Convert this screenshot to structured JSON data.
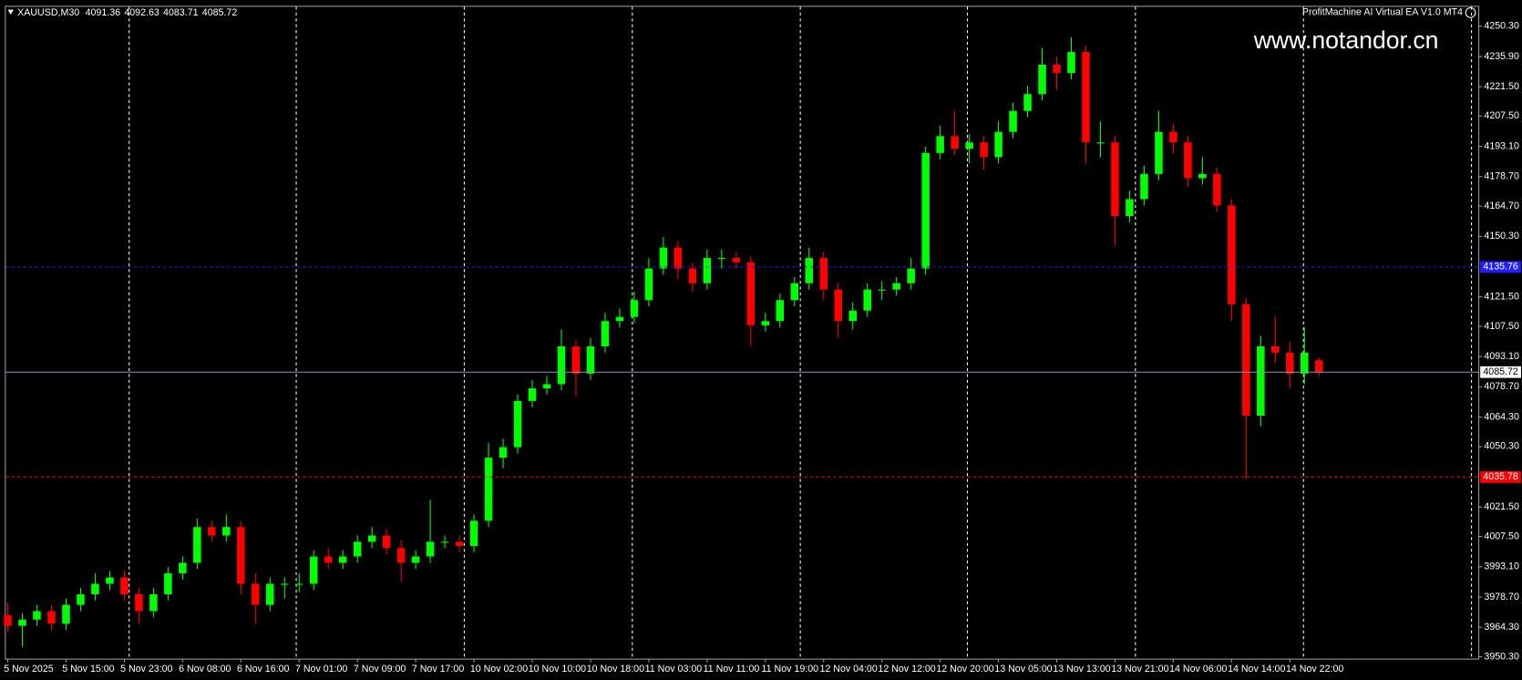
{
  "chart_data": {
    "type": "candlestick",
    "title": "XAUUSD,M30",
    "subtitle": "ProfitMachine AI Virtual EA V1.0 MT4",
    "annotation": "www.notandor.cn",
    "categories": [
      "5 Nov 2025",
      null,
      null,
      null,
      "5 Nov 15:00",
      null,
      null,
      null,
      "5 Nov 23:00",
      null,
      null,
      null,
      "6 Nov 08:00",
      null,
      null,
      null,
      "6 Nov 16:00",
      null,
      null,
      null,
      "7 Nov 01:00",
      null,
      null,
      null,
      "7 Nov 09:00",
      null,
      null,
      null,
      "7 Nov 17:00",
      null,
      null,
      null,
      "10 Nov 02:00",
      null,
      null,
      null,
      "10 Nov 10:00",
      null,
      null,
      null,
      "10 Nov 18:00",
      null,
      null,
      null,
      "11 Nov 03:00",
      null,
      null,
      null,
      "11 Nov 11:00",
      null,
      null,
      null,
      "11 Nov 19:00",
      null,
      null,
      null,
      "12 Nov 04:00",
      null,
      null,
      null,
      "12 Nov 12:00",
      null,
      null,
      null,
      "12 Nov 20:00",
      null,
      null,
      null,
      "13 Nov 05:00",
      null,
      null,
      null,
      "13 Nov 13:00",
      null,
      null,
      null,
      "13 Nov 21:00",
      null,
      null,
      null,
      "14 Nov 06:00",
      null,
      null,
      null,
      "14 Nov 14:00",
      null,
      null,
      null,
      "14 Nov 22:00",
      null,
      null
    ],
    "series": [
      {
        "up_color": "#00ff00",
        "down_color": "#ff0000",
        "open": [
          3970,
          3965,
          3968,
          3972,
          3966,
          3975,
          3980,
          3985,
          3988,
          3980,
          3972,
          3980,
          3990,
          3995,
          4012,
          4008,
          4012,
          3985,
          3975,
          3985,
          3985,
          3985,
          3998,
          3995,
          3998,
          4005,
          4008,
          4002,
          3995,
          3998,
          4005,
          4005,
          4003,
          4015,
          4045,
          4050,
          4072,
          4078,
          4080,
          4098,
          4085,
          4098,
          4110,
          4112,
          4120,
          4135,
          4145,
          4135,
          4128,
          4140,
          4140,
          4138,
          4108,
          4110,
          4120,
          4128,
          4140,
          4125,
          4110,
          4115,
          4125,
          4125,
          4128,
          4135,
          4190,
          4198,
          4192,
          4195,
          4188,
          4200,
          4210,
          4218,
          4232,
          4228,
          4238,
          4195,
          4195,
          4160,
          4168,
          4180,
          4200,
          4195,
          4178,
          4180,
          4165,
          4118,
          4065,
          4098,
          4095,
          4085,
          4091.36
        ],
        "high": [
          3976,
          3971,
          3975,
          3975,
          3978,
          3983,
          3990,
          3991,
          3991,
          3983,
          3983,
          3993,
          3998,
          4016,
          4015,
          4018,
          4015,
          3990,
          3988,
          3988,
          3990,
          4001,
          4002,
          4001,
          4008,
          4012,
          4011,
          4006,
          4001,
          4025,
          4008,
          4008,
          4018,
          4052,
          4054,
          4075,
          4082,
          4084,
          4106,
          4101,
          4102,
          4114,
          4116,
          4124,
          4140,
          4150,
          4148,
          4138,
          4144,
          4144,
          4143,
          4141,
          4114,
          4123,
          4131,
          4145,
          4143,
          4128,
          4119,
          4128,
          4129,
          4131,
          4140,
          4193,
          4203,
          4210,
          4199,
          4198,
          4205,
          4214,
          4222,
          4240,
          4236,
          4245,
          4241,
          4205,
          4198,
          4172,
          4184,
          4210,
          4204,
          4198,
          4188,
          4183,
          4168,
          4121,
          4103,
          4112,
          4100,
          4107,
          4092.63
        ],
        "low": [
          3962,
          3955,
          3965,
          3963,
          3963,
          3972,
          3977,
          3982,
          3977,
          3966,
          3969,
          3977,
          3987,
          3992,
          4005,
          4005,
          3980,
          3966,
          3972,
          3978,
          3981,
          3982,
          3992,
          3992,
          3995,
          4002,
          3999,
          3986,
          3992,
          3995,
          4002,
          4000,
          4000,
          4012,
          4040,
          4047,
          4069,
          4075,
          4077,
          4074,
          4082,
          4095,
          4107,
          4109,
          4117,
          4132,
          4130,
          4124,
          4125,
          4135,
          4135,
          4098,
          4105,
          4107,
          4117,
          4125,
          4120,
          4102,
          4106,
          4112,
          4120,
          4122,
          4125,
          4132,
          4187,
          4189,
          4185,
          4182,
          4185,
          4197,
          4207,
          4215,
          4220,
          4225,
          4185,
          4188,
          4146,
          4157,
          4165,
          4177,
          4190,
          4174,
          4175,
          4162,
          4110,
          4035,
          4060,
          4090,
          4078,
          4080,
          4083.71
        ],
        "close": [
          3965,
          3968,
          3972,
          3966,
          3975,
          3980,
          3985,
          3988,
          3980,
          3972,
          3980,
          3990,
          3995,
          4012,
          4008,
          4012,
          3985,
          3975,
          3985,
          3985,
          3985,
          3998,
          3995,
          3998,
          4005,
          4008,
          4002,
          3995,
          3998,
          4005,
          4005,
          4003,
          4015,
          4045,
          4050,
          4072,
          4078,
          4080,
          4098,
          4085,
          4098,
          4110,
          4112,
          4120,
          4135,
          4145,
          4135,
          4128,
          4140,
          4140,
          4138,
          4108,
          4110,
          4120,
          4128,
          4140,
          4125,
          4110,
          4115,
          4125,
          4125,
          4128,
          4135,
          4190,
          4198,
          4192,
          4195,
          4188,
          4200,
          4210,
          4218,
          4232,
          4228,
          4238,
          4195,
          4195,
          4160,
          4168,
          4180,
          4200,
          4195,
          4178,
          4180,
          4165,
          4118,
          4065,
          4098,
          4095,
          4085,
          4095,
          4085.72
        ]
      }
    ],
    "lines": [
      {
        "value": 4135.76,
        "color": "#2020ff",
        "style": "dashed"
      },
      {
        "value": 4085.72,
        "color": "#8c96b4",
        "style": "solid"
      },
      {
        "value": 4035.78,
        "color": "#ff0000",
        "style": "dashed"
      }
    ],
    "ylim": [
      3949.4,
      4260
    ],
    "yticks": [
      {
        "value": 4250.3,
        "label": "4250.30"
      },
      {
        "value": 4235.9,
        "label": "4235.90"
      },
      {
        "value": 4221.5,
        "label": "4221.50"
      },
      {
        "value": 4207.5,
        "label": "4207.50"
      },
      {
        "value": 4193.1,
        "label": "4193.10"
      },
      {
        "value": 4178.7,
        "label": "4178.70"
      },
      {
        "value": 4164.7,
        "label": "4164.70"
      },
      {
        "value": 4150.3,
        "label": "4150.30"
      },
      {
        "value": 4121.5,
        "label": "4121.50"
      },
      {
        "value": 4107.5,
        "label": "4107.50"
      },
      {
        "value": 4093.1,
        "label": "4093.10"
      },
      {
        "value": 4078.7,
        "label": "4078.70"
      },
      {
        "value": 4064.3,
        "label": "4064.30"
      },
      {
        "value": 4050.3,
        "label": "4050.30"
      },
      {
        "value": 4021.5,
        "label": "4021.50"
      },
      {
        "value": 4007.5,
        "label": "4007.50"
      },
      {
        "value": 3993.1,
        "label": "3993.10"
      },
      {
        "value": 3978.7,
        "label": "3978.70"
      },
      {
        "value": 3964.3,
        "label": "3964.30"
      },
      {
        "value": 3950.3,
        "label": "3950.30"
      }
    ]
  }
}
